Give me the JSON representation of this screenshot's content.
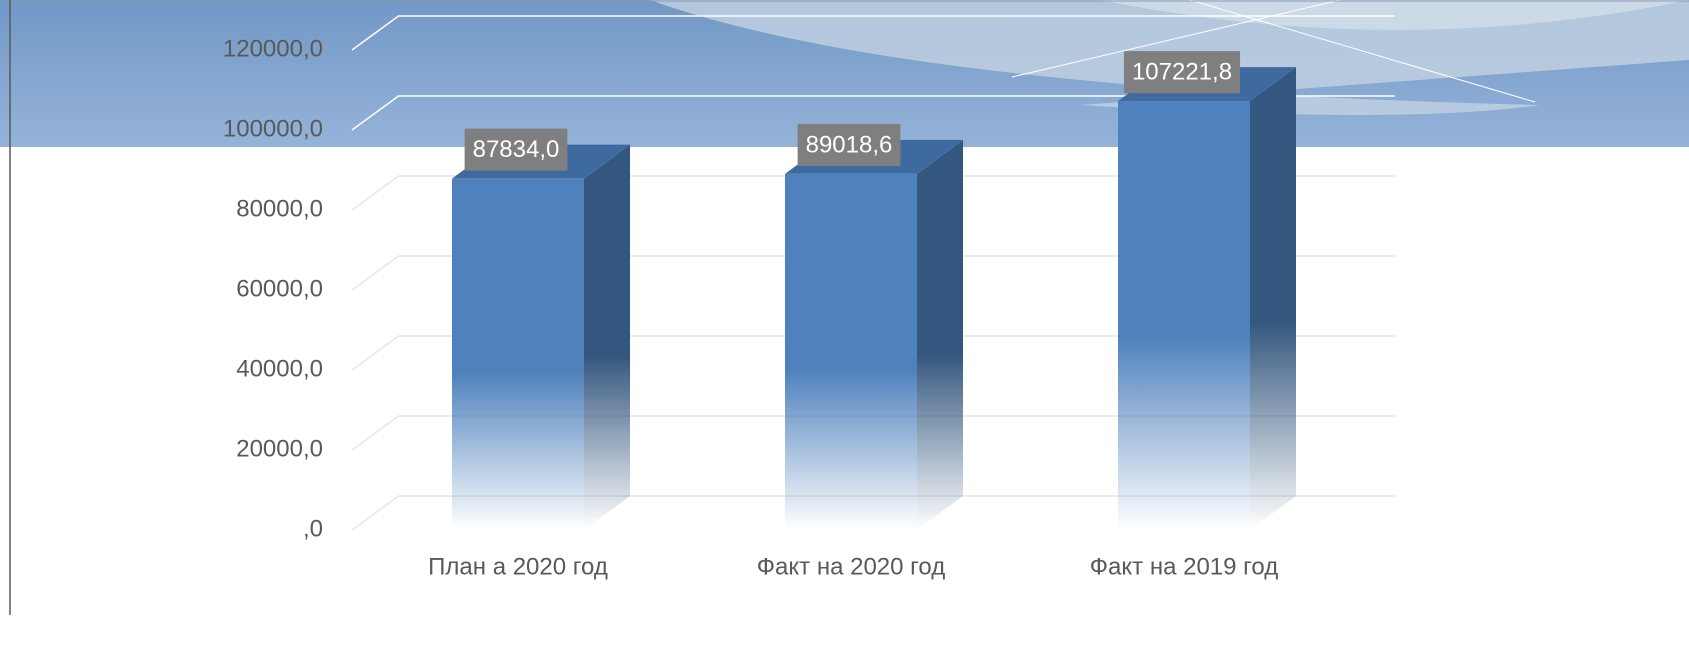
{
  "chart_data": {
    "type": "bar3d",
    "categories": [
      "План а 2020 год",
      "Факт на 2020 год",
      "Факт на 2019 год"
    ],
    "values": [
      87834.0,
      89018.6,
      107221.8
    ],
    "value_labels": [
      "87834,0",
      "89018,6",
      "107221,8"
    ],
    "color": "#4f81bd",
    "ylim": [
      0,
      120000
    ],
    "yticks": [
      {
        "value": 0,
        "label": ",0"
      },
      {
        "value": 20000,
        "label": "20000,0"
      },
      {
        "value": 40000,
        "label": "40000,0"
      },
      {
        "value": 60000,
        "label": "60000,0"
      },
      {
        "value": 80000,
        "label": "80000,0"
      },
      {
        "value": 100000,
        "label": "100000,0"
      },
      {
        "value": 120000,
        "label": "120000,0"
      }
    ],
    "grid": true
  }
}
